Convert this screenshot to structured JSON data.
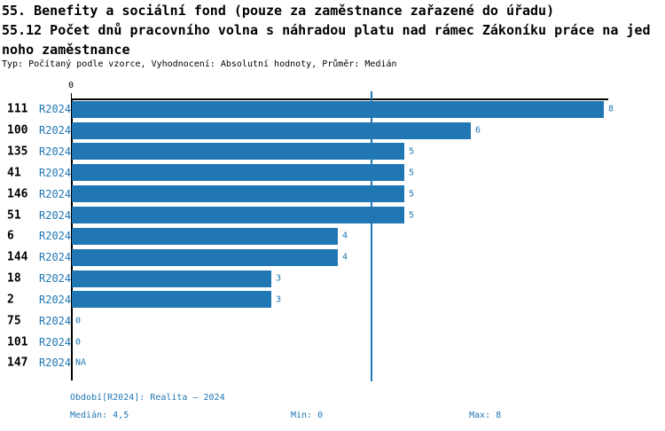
{
  "header": {
    "title_lines": [
      "55. Benefity a sociální fond (pouze za zaměstnance zařazené do úřadu)",
      "55.12 Počet dnů pracovního volna s náhradou platu nad rámec Zákoníku práce na jed",
      "noho zaměstnance"
    ],
    "subtitle": "Typ: Počítaný podle vzorce, Vyhodnocení: Absolutní hodnoty, Průměr: Medián"
  },
  "chart_data": {
    "type": "bar",
    "orientation": "horizontal",
    "title": "55.12 Počet dnů pracovního volna s náhradou platu nad rámec Zákoníku práce na jednoho zaměstnance",
    "x_axis": {
      "tick_labels": [
        "0"
      ],
      "xlim": [
        0,
        8
      ],
      "grid": false
    },
    "median_value": 4.5,
    "rows": [
      {
        "id": "111",
        "period": "R2024",
        "value": 8,
        "label": "8"
      },
      {
        "id": "100",
        "period": "R2024",
        "value": 6,
        "label": "6"
      },
      {
        "id": "135",
        "period": "R2024",
        "value": 5,
        "label": "5"
      },
      {
        "id": "41",
        "period": "R2024",
        "value": 5,
        "label": "5"
      },
      {
        "id": "146",
        "period": "R2024",
        "value": 5,
        "label": "5"
      },
      {
        "id": "51",
        "period": "R2024",
        "value": 5,
        "label": "5"
      },
      {
        "id": "6",
        "period": "R2024",
        "value": 4,
        "label": "4"
      },
      {
        "id": "144",
        "period": "R2024",
        "value": 4,
        "label": "4"
      },
      {
        "id": "18",
        "period": "R2024",
        "value": 3,
        "label": "3"
      },
      {
        "id": "2",
        "period": "R2024",
        "value": 3,
        "label": "3"
      },
      {
        "id": "75",
        "period": "R2024",
        "value": 0,
        "label": "0"
      },
      {
        "id": "101",
        "period": "R2024",
        "value": 0,
        "label": "0"
      },
      {
        "id": "147",
        "period": "R2024",
        "value": null,
        "label": "NA"
      }
    ],
    "stats": {
      "median": "4,5",
      "min": "0",
      "max": "8"
    }
  },
  "footer": {
    "period_line": "Období[R2024]: Realita – 2024",
    "median_label": "Medián: 4,5",
    "min_label": "Min: 0",
    "max_label": "Max: 8"
  },
  "colors": {
    "bar": "#2077b4",
    "accent_text": "#2077b4",
    "axis": "#000000",
    "background": "#ffffff"
  }
}
